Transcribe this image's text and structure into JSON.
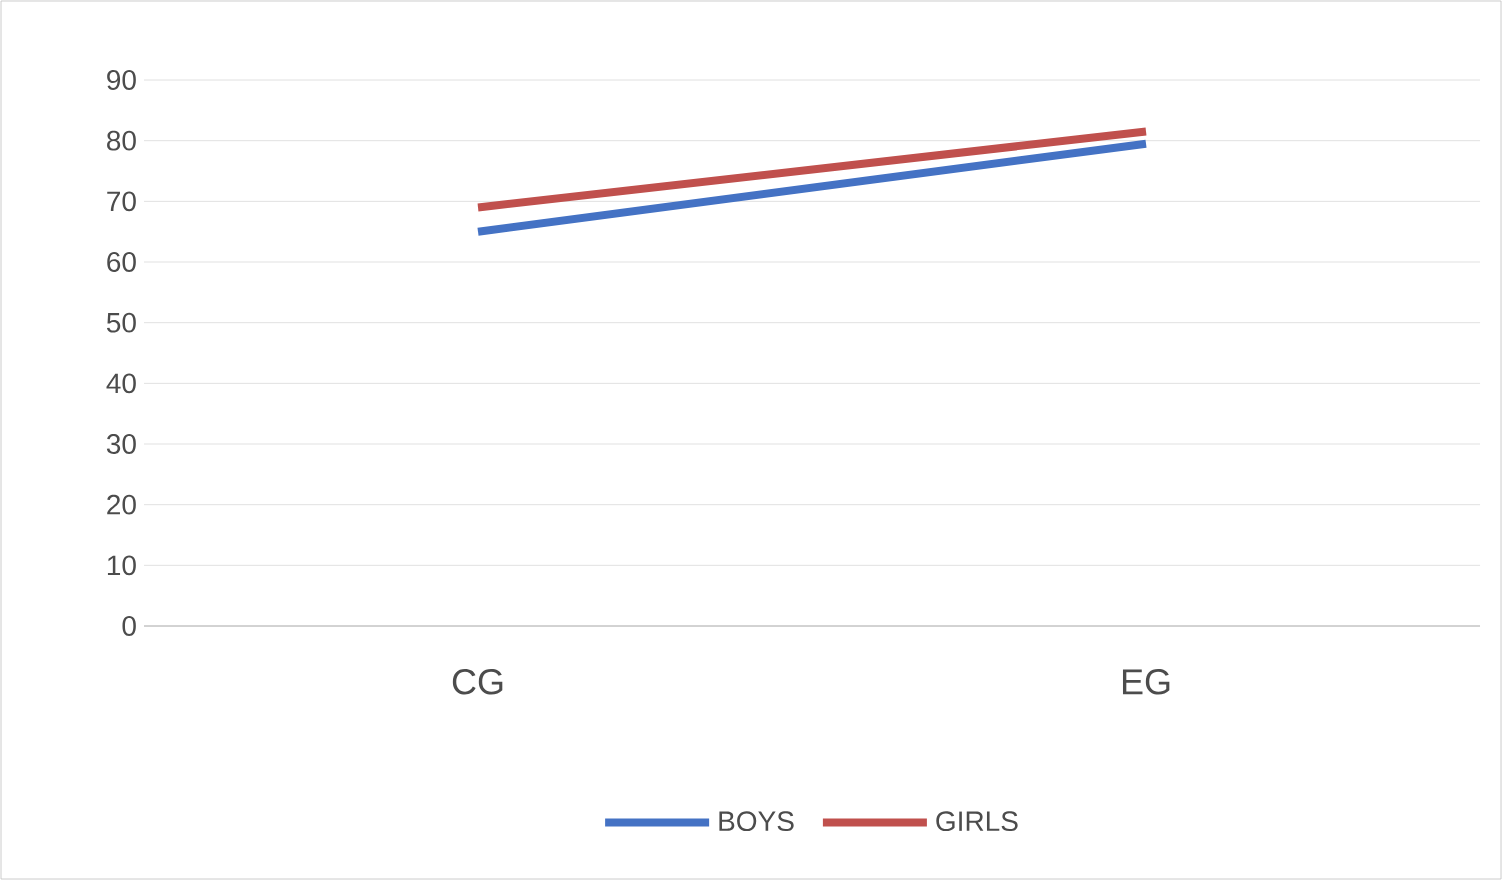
{
  "chart_data": {
    "type": "line",
    "categories": [
      "CG",
      "EG"
    ],
    "series": [
      {
        "name": "BOYS",
        "color": "#4472c4",
        "values": [
          65,
          79.5
        ]
      },
      {
        "name": "GIRLS",
        "color": "#c0504d",
        "values": [
          69,
          81.5
        ]
      }
    ],
    "ylim": [
      0,
      90
    ],
    "yticks": [
      0,
      10,
      20,
      30,
      40,
      50,
      60,
      70,
      80,
      90
    ],
    "grid": "y",
    "legend": "bottom",
    "marker": "none",
    "line_style": "solid"
  }
}
